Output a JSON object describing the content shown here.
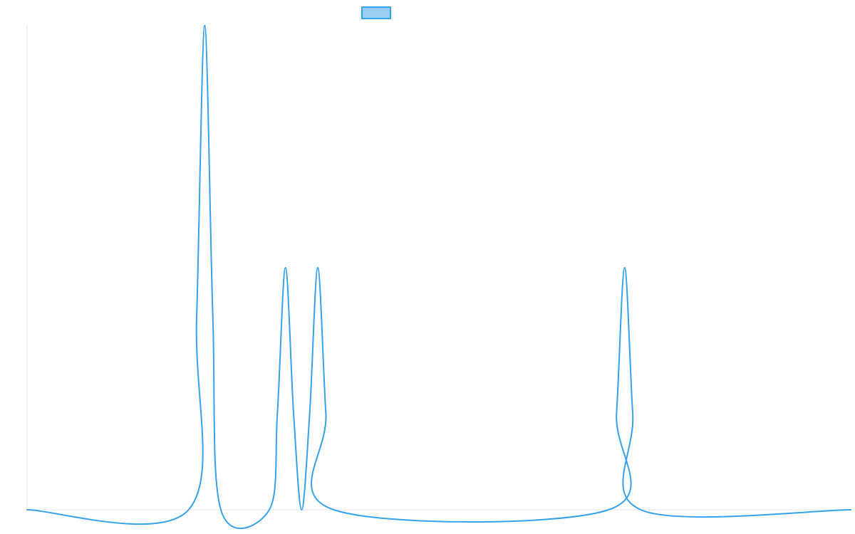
{
  "chart_data": {
    "type": "line",
    "title": "",
    "xlabel": "",
    "ylabel": "",
    "legend": {
      "position": "top-center",
      "entries": [
        {
          "label": "",
          "color": "#36A2EB",
          "fill": "#9AD0F5"
        }
      ]
    },
    "grid": false,
    "xlim": [
      0,
      51
    ],
    "ylim": [
      0,
      2
    ],
    "series": [
      {
        "color": "#36A2EB",
        "x": [
          0,
          10,
          10.5,
          11,
          11.5,
          12,
          15,
          15.5,
          16,
          16.5,
          17,
          17.5,
          18,
          18.5,
          19,
          36,
          36.5,
          37,
          37.5,
          38,
          51
        ],
        "values": [
          0,
          0,
          0.8,
          2,
          0.8,
          0,
          0,
          0.4,
          1,
          0.4,
          0,
          0.4,
          1,
          0.4,
          0,
          0,
          0.4,
          1,
          0.4,
          0,
          0
        ]
      }
    ]
  }
}
